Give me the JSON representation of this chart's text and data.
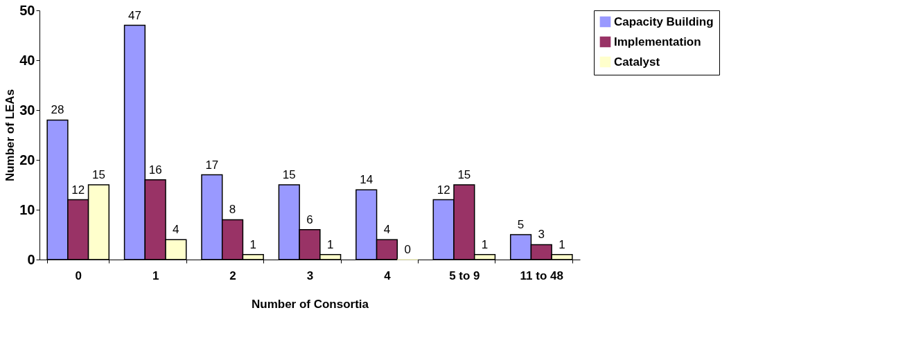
{
  "chart_data": {
    "type": "bar",
    "xlabel": "Number of Consortia",
    "ylabel": "Number of LEAs",
    "categories": [
      "0",
      "1",
      "2",
      "3",
      "4",
      "5 to 9",
      "11 to 48"
    ],
    "series": [
      {
        "name": "Capacity Building",
        "color": "#9999ff",
        "values": [
          28,
          47,
          17,
          15,
          14,
          12,
          5
        ]
      },
      {
        "name": "Implementation",
        "color": "#993366",
        "values": [
          12,
          16,
          8,
          6,
          4,
          15,
          3
        ]
      },
      {
        "name": "Catalyst",
        "color": "#ffffcc",
        "values": [
          15,
          4,
          1,
          1,
          0,
          1,
          1
        ]
      }
    ],
    "ylim": [
      0,
      50
    ],
    "yticks": [
      0,
      10,
      20,
      30,
      40,
      50
    ],
    "grid": false,
    "legend": "right",
    "data_labels": true
  }
}
